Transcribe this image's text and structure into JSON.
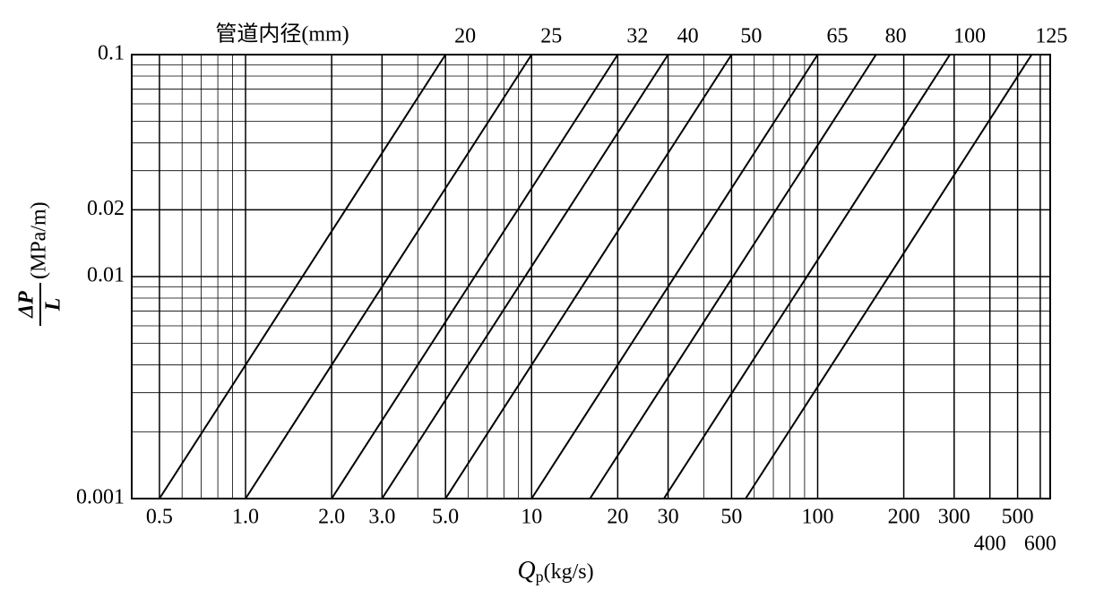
{
  "chart_data": {
    "type": "line",
    "title": "管道内径(mm)",
    "xlabel": {
      "symbol": "Q",
      "subscript": "p",
      "unit": "(kg/s)"
    },
    "ylabel": {
      "numerator": "ΔP",
      "denominator": "L",
      "unit": "(MPa/m)"
    },
    "log_x": true,
    "log_y": true,
    "grid": true,
    "xlim": [
      0.4,
      650
    ],
    "ylim": [
      0.001,
      0.1
    ],
    "xticks": [
      0.5,
      {
        "value": 1,
        "label": "1.0"
      },
      {
        "value": 2,
        "label": "2.0"
      },
      {
        "value": 3,
        "label": "3.0"
      },
      {
        "value": 5,
        "label": "5.0"
      },
      10,
      20,
      30,
      50,
      100,
      200,
      300,
      400,
      500,
      600
    ],
    "yticks": [
      0.001,
      0.01,
      0.02,
      0.1
    ],
    "series": [
      {
        "name": "20",
        "color": "#000000",
        "x": [
          0.5,
          5
        ],
        "values": [
          0.001,
          0.1
        ]
      },
      {
        "name": "25",
        "color": "#000000",
        "x": [
          1,
          10
        ],
        "values": [
          0.001,
          0.1
        ]
      },
      {
        "name": "32",
        "color": "#000000",
        "x": [
          2,
          20
        ],
        "values": [
          0.001,
          0.1
        ]
      },
      {
        "name": "40",
        "color": "#000000",
        "x": [
          3,
          30
        ],
        "values": [
          0.001,
          0.1
        ]
      },
      {
        "name": "50",
        "color": "#000000",
        "x": [
          5,
          50
        ],
        "values": [
          0.001,
          0.1
        ]
      },
      {
        "name": "65",
        "color": "#000000",
        "x": [
          10,
          100
        ],
        "values": [
          0.001,
          0.1
        ]
      },
      {
        "name": "80",
        "color": "#000000",
        "x": [
          16,
          160
        ],
        "values": [
          0.001,
          0.1
        ]
      },
      {
        "name": "100",
        "color": "#000000",
        "x": [
          29,
          290
        ],
        "values": [
          0.001,
          0.1
        ]
      },
      {
        "name": "125",
        "color": "#000000",
        "x": [
          56,
          560
        ],
        "values": [
          0.001,
          0.1
        ]
      }
    ]
  }
}
